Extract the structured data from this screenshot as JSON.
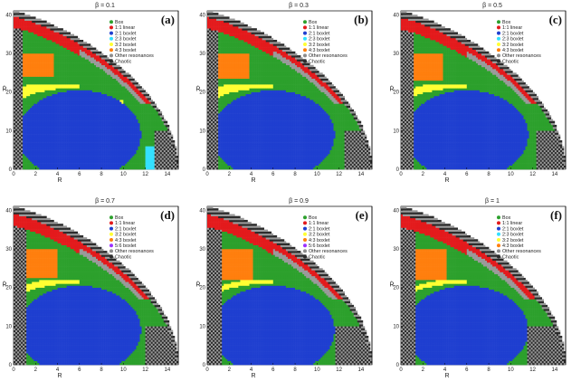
{
  "chart_data": {
    "type": "heatmap",
    "description_labels": {
      "xlabel": "R",
      "ylabel": "Ṙ"
    },
    "xlim": [
      0,
      15
    ],
    "ylim": [
      0,
      41
    ],
    "xticks": [
      "0",
      "2",
      "4",
      "6",
      "8",
      "10",
      "12",
      "14"
    ],
    "yticks": [
      "0",
      "10",
      "20",
      "30",
      "40"
    ],
    "legend": [
      {
        "label": "Box",
        "color": "#2ca02c"
      },
      {
        "label": "1:1 linear",
        "color": "#e31a1c"
      },
      {
        "label": "2:1 boxlet",
        "color": "#1f3fd0"
      },
      {
        "label": "3:2 boxlet",
        "color": "#ffff33"
      },
      {
        "label": "4:3 boxlet",
        "color": "#ff7f0e"
      },
      {
        "label": "5:6 boxlet",
        "color": "#9b30ff"
      },
      {
        "label": "Other resonances",
        "color": "#8c8c8c"
      },
      {
        "label": "Chaotic",
        "color": "#2b2b2b"
      }
    ],
    "legend_variant": [
      {
        "label": "Box",
        "color": "#2ca02c"
      },
      {
        "label": "1:1 linear",
        "color": "#e31a1c"
      },
      {
        "label": "2:1 boxlet",
        "color": "#1f3fd0"
      },
      {
        "label": "2:3 boxlet",
        "color": "#33e0ff"
      },
      {
        "label": "3:2 boxlet",
        "color": "#ffff33"
      },
      {
        "label": "4:3 boxlet",
        "color": "#ff7f0e"
      },
      {
        "label": "Other resonances",
        "color": "#8c8c8c"
      },
      {
        "label": "Chaotic",
        "color": "#2b2b2b"
      }
    ],
    "panels": [
      {
        "id": "a",
        "letter": "(a)",
        "title": "β = 0.1",
        "beta": 0.1,
        "legend_kind": "variant",
        "show_xlabel": true,
        "show_ylabel": true
      },
      {
        "id": "b",
        "letter": "(b)",
        "title": "β = 0.3",
        "beta": 0.3,
        "legend_kind": "variant",
        "show_xlabel": true,
        "show_ylabel": true
      },
      {
        "id": "c",
        "letter": "(c)",
        "title": "β = 0.5",
        "beta": 0.5,
        "legend_kind": "variant",
        "show_xlabel": true,
        "show_ylabel": true
      },
      {
        "id": "d",
        "letter": "(d)",
        "title": "β = 0.7",
        "beta": 0.7,
        "legend_kind": "main",
        "show_xlabel": true,
        "show_ylabel": true
      },
      {
        "id": "e",
        "letter": "(e)",
        "title": "β = 0.9",
        "beta": 0.9,
        "legend_kind": "main",
        "show_xlabel": true,
        "show_ylabel": true
      },
      {
        "id": "f",
        "letter": "(f)",
        "title": "β = 1",
        "beta": 1.0,
        "legend_kind": "variant",
        "show_xlabel": true,
        "show_ylabel": true
      }
    ]
  }
}
